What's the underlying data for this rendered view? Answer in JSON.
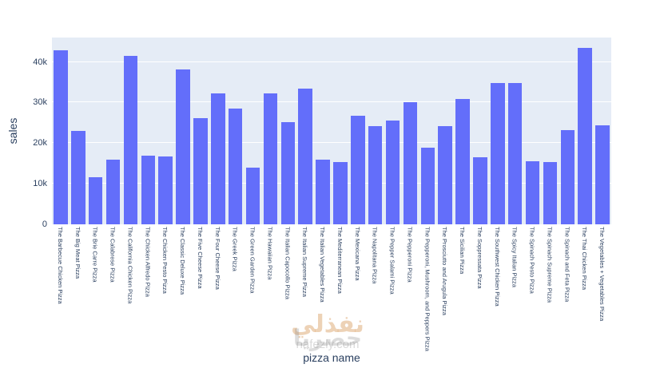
{
  "chart_data": {
    "type": "bar",
    "title": "",
    "xlabel": "pizza name",
    "ylabel": "sales",
    "ylim": [
      0,
      46000
    ],
    "grid": true,
    "legend": false,
    "bar_color": "#636efa",
    "plot_bg": "#e5ecf6",
    "y_tick_values": [
      0,
      10000,
      20000,
      30000,
      40000
    ],
    "y_tick_labels": [
      "0",
      "10k",
      "20k",
      "30k",
      "40k"
    ],
    "categories": [
      "The Barbecue Chicken Pizza",
      "The Big Meat Pizza",
      "The Brie Carre Pizza",
      "The Calabrese Pizza",
      "The California Chicken Pizza",
      "The Chicken Alfredo Pizza",
      "The Chicken Pesto Pizza",
      "The Classic Deluxe Pizza",
      "The Five Cheese Pizza",
      "The Four Cheese Pizza",
      "The Greek Pizza",
      "The Green Garden Pizza",
      "The Hawaiian Pizza",
      "The Italian Capocollo Pizza",
      "The Italian Supreme Pizza",
      "The Italian Vegetables Pizza",
      "The Mediterranean Pizza",
      "The Mexicana Pizza",
      "The Napolitana Pizza",
      "The Pepper Salami Pizza",
      "The Pepperoni Pizza",
      "The Pepperoni, Mushroom, and Peppers Pizza",
      "The Prosciutto and Arugula Pizza",
      "The Sicilian Pizza",
      "The Soppressata Pizza",
      "The Southwest Chicken Pizza",
      "The Spicy Italian Pizza",
      "The Spinach Pesto Pizza",
      "The Spinach Supreme Pizza",
      "The Spinach and Feta Pizza",
      "The Thai Chicken Pizza",
      "The Vegetables + Vegetables Pizza"
    ],
    "values": [
      42768,
      22968,
      11588,
      15934,
      41410,
      16900,
      16702,
      38181,
      26067,
      32266,
      28454,
      13956,
      32273,
      25094,
      33477,
      15993,
      15361,
      26781,
      24087,
      25529,
      30162,
      18835,
      24193,
      30941,
      16426,
      34706,
      34831,
      15596,
      15278,
      23271,
      43434,
      24375
    ]
  },
  "watermark": {
    "brand_ar": "نفذلي",
    "word_ar": "حصريا",
    "site": "nafezly.com"
  }
}
